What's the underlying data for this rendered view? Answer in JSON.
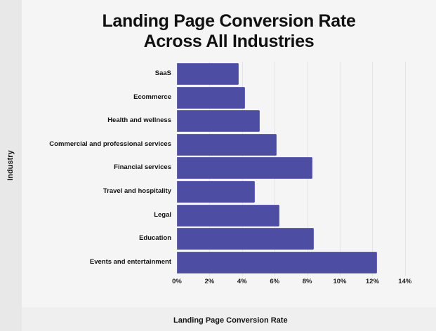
{
  "chart_data": {
    "type": "bar",
    "orientation": "horizontal",
    "title": "Landing Page Conversion Rate Across All Industries",
    "title_lines": [
      "Landing Page Conversion Rate",
      "Across All Industries"
    ],
    "xlabel": "Landing Page Conversion Rate",
    "ylabel": "Industry",
    "categories": [
      "SaaS",
      "Ecommerce",
      "Health and wellness",
      "Commercial and professional services",
      "Financial services",
      "Travel and hospitality",
      "Legal",
      "Education",
      "Events and entertainment"
    ],
    "values": [
      3.8,
      4.2,
      5.1,
      6.1,
      8.3,
      4.8,
      6.3,
      8.4,
      12.3
    ],
    "unit": "%",
    "xlim": [
      0,
      14
    ],
    "x_ticks": [
      "0%",
      "2%",
      "4%",
      "6%",
      "8%",
      "10%",
      "12%",
      "14%"
    ],
    "grid": "vertical",
    "legend": "none",
    "bar_color": "#4d4ea3"
  },
  "colors": {
    "bar": "#4d4ea3",
    "background": "#f5f5f5",
    "side_strip": "#e8e8e8",
    "bottom_strip": "#efefef",
    "gridline": "#e4e4e4"
  }
}
